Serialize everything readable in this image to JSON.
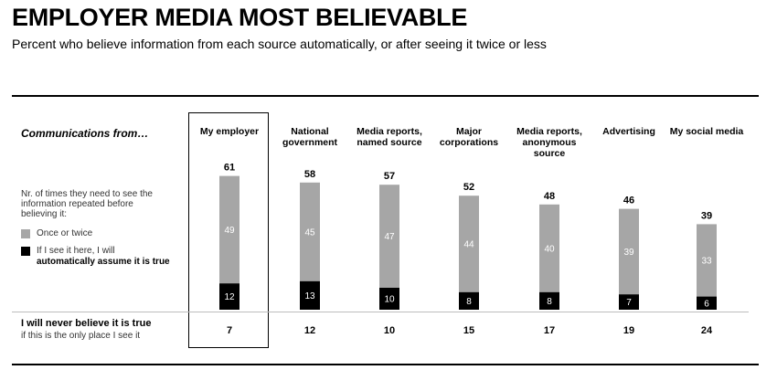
{
  "title": "EMPLOYER MEDIA MOST BELIEVABLE",
  "subtitle": "Percent who believe information from each source automatically, or after seeing it twice or less",
  "section_label": "Communications from…",
  "legend": {
    "intro": "Nr. of times they need to see the information repeated before believing it:",
    "gray_label": "Once or twice",
    "black_label_line1": "If I see it here, I will",
    "black_label_line2": "automatically assume it is true"
  },
  "never_row": {
    "label": "I will never believe it is true",
    "note": "if this is the only place I see it"
  },
  "colors": {
    "gray": "#a6a6a6",
    "black": "#000000",
    "segment_label_light": "#ffffff"
  },
  "chart_data": {
    "type": "bar",
    "stacked": true,
    "categories": [
      "My employer",
      "National government",
      "Media reports, named source",
      "Major corporations",
      "Media reports, anonymous source",
      "Advertising",
      "My social media"
    ],
    "category_lines": [
      [
        "My employer"
      ],
      [
        "National",
        "government"
      ],
      [
        "Media reports,",
        "named source"
      ],
      [
        "Major",
        "corporations"
      ],
      [
        "Media reports,",
        "anonymous",
        "source"
      ],
      [
        "Advertising"
      ],
      [
        "My social media"
      ]
    ],
    "series": [
      {
        "name": "If I see it here, I will automatically assume it is true",
        "values": [
          12,
          13,
          10,
          8,
          8,
          7,
          6
        ]
      },
      {
        "name": "Once or twice",
        "values": [
          49,
          45,
          47,
          44,
          40,
          39,
          33
        ]
      }
    ],
    "totals": [
      61,
      58,
      57,
      52,
      48,
      46,
      39
    ],
    "never_believe": [
      7,
      12,
      10,
      15,
      17,
      19,
      24
    ],
    "highlighted_category": "My employer"
  }
}
